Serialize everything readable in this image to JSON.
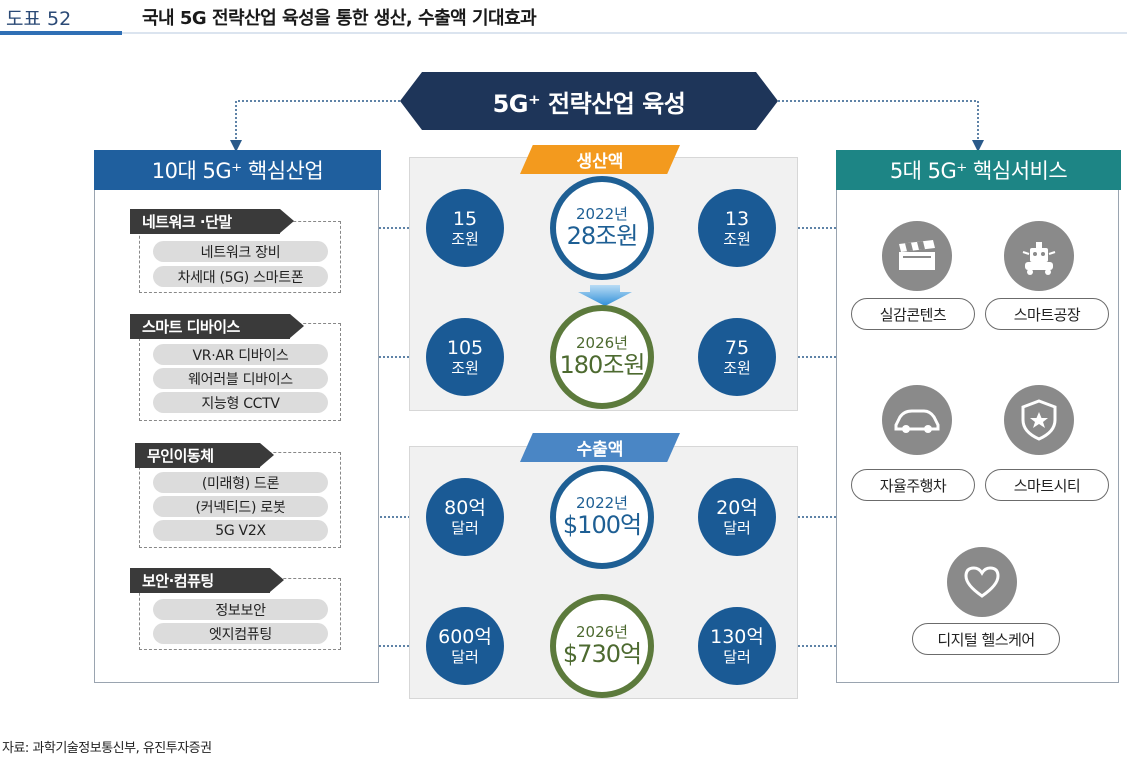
{
  "header": {
    "figure_label": "도표 52",
    "title": "국내 5G 전략산업 육성을 통한 생산, 수출액 기대효과"
  },
  "banner": {
    "title": "5G⁺ 전략산업 육성"
  },
  "left_panel": {
    "title": "10대 5G⁺ 핵심산업",
    "groups": [
      {
        "tag": "네트워크 ·단말",
        "items": [
          "네트워크 장비",
          "차세대 (5G) 스마트폰"
        ]
      },
      {
        "tag": "스마트 디바이스",
        "items": [
          "VR·AR 디바이스",
          "웨어러블 디바이스",
          "지능형 CCTV"
        ]
      },
      {
        "tag": "무인이동체",
        "items": [
          "(미래형) 드론",
          "(커넥티드) 로봇",
          "5G V2X"
        ]
      },
      {
        "tag": "보안·컴퓨팅",
        "items": [
          "정보보안",
          "엣지컴퓨팅"
        ]
      }
    ]
  },
  "right_panel": {
    "title": "5대 5G⁺ 핵심서비스",
    "services": [
      {
        "label": "실감콘텐츠",
        "icon": "clapperboard-icon"
      },
      {
        "label": "스마트공장",
        "icon": "robot-icon"
      },
      {
        "label": "자율주행차",
        "icon": "car-icon"
      },
      {
        "label": "스마트시티",
        "icon": "shield-city-icon"
      },
      {
        "label": "디지털 헬스케어",
        "icon": "heart-icon"
      }
    ]
  },
  "production": {
    "tag": "생산액",
    "rows": [
      {
        "left": {
          "num": "15",
          "unit": "조원"
        },
        "center": {
          "year": "2022년",
          "amount": "28조원"
        },
        "right": {
          "num": "13",
          "unit": "조원"
        }
      },
      {
        "left": {
          "num": "105",
          "unit": "조원"
        },
        "center": {
          "year": "2026년",
          "amount": "180조원"
        },
        "right": {
          "num": "75",
          "unit": "조원"
        }
      }
    ]
  },
  "exports": {
    "tag": "수출액",
    "rows": [
      {
        "left": {
          "num": "80억",
          "unit": "달러"
        },
        "center": {
          "year": "2022년",
          "amount": "$100억"
        },
        "right": {
          "num": "20억",
          "unit": "달러"
        }
      },
      {
        "left": {
          "num": "600억",
          "unit": "달러"
        },
        "center": {
          "year": "2026년",
          "amount": "$730억"
        },
        "right": {
          "num": "130억",
          "unit": "달러"
        }
      }
    ]
  },
  "colors": {
    "navy": "#1e3559",
    "blue_header": "#1f5f9e",
    "teal_header": "#1d8585",
    "orange_tag": "#f39a1e",
    "blue_tag": "#4a86c5",
    "circle_blue": "#1a5a95",
    "circle_green": "#5c7a3c"
  },
  "source": "자료: 과학기술정보통신부, 유진투자증권"
}
